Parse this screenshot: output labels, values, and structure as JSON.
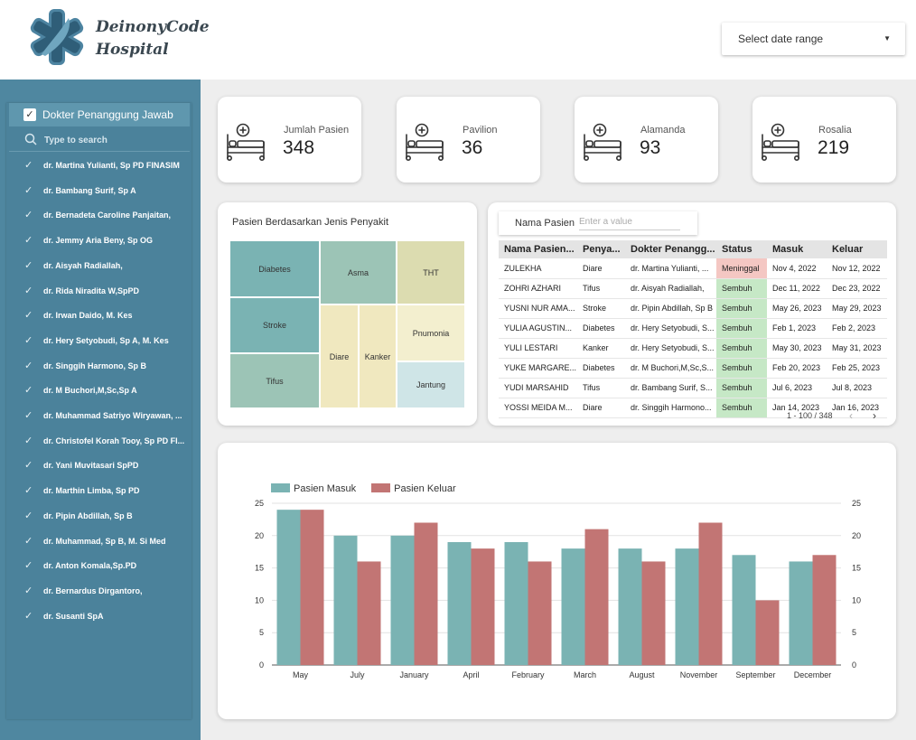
{
  "brand": {
    "line1": "DeinonyCode",
    "line2": "Hospital"
  },
  "date_range": {
    "label": "Select date range"
  },
  "colors": {
    "teal": "#7ab3b3",
    "red": "#c27574",
    "sidebar": "#4f87a0",
    "meninggal": "#f4c7c3",
    "sembuh": "#c6e8c6"
  },
  "sidebar": {
    "header": "Dokter Penanggung Jawab",
    "search_placeholder": "Type to search",
    "doctors": [
      "dr. Martina Yulianti, Sp PD FINASIM",
      "dr. Bambang Surif, Sp A",
      "dr. Bernadeta Caroline Panjaitan,",
      "dr. Jemmy Aria Beny, Sp OG",
      "dr. Aisyah Radiallah,",
      "dr. Rida Niradita W,SpPD",
      "dr. Irwan Daido, M. Kes",
      "dr. Hery Setyobudi, Sp A, M. Kes",
      "dr. Singgih Harmono, Sp B",
      "dr. M Buchori,M,Sc,Sp A",
      "dr. Muhammad Satriyo Wiryawan, ...",
      "dr. Christofel Korah Tooy, Sp PD FI...",
      "dr. Yani Muvitasari SpPD",
      "dr. Marthin Limba, Sp PD",
      "dr. Pipin Abdillah, Sp B",
      "dr. Muhammad, Sp B, M. Si Med",
      "dr. Anton Komala,Sp.PD",
      "dr. Bernardus Dirgantoro,",
      "dr. Susanti SpA"
    ]
  },
  "kpis": [
    {
      "label": "Jumlah Pasien",
      "value": "348",
      "icon": "hospital-bed-icon"
    },
    {
      "label": "Pavilion",
      "value": "36",
      "icon": "hospital-bed-icon"
    },
    {
      "label": "Alamanda",
      "value": "93",
      "icon": "hospital-bed-icon"
    },
    {
      "label": "Rosalia",
      "value": "219",
      "icon": "hospital-bed-icon"
    }
  ],
  "treemap": {
    "title": "Pasien Berdasarkan Jenis Penyakit",
    "cells": {
      "diabetes": "Diabetes",
      "stroke": "Stroke",
      "tifus": "Tifus",
      "asma": "Asma",
      "diare": "Diare",
      "kanker": "Kanker",
      "tht": "THT",
      "pnumonia": "Pnumonia",
      "jantung": "Jantung"
    }
  },
  "table": {
    "filter_label": "Nama Pasien",
    "filter_placeholder": "Enter a value",
    "columns": [
      "Nama Pasien...",
      "Penya...",
      "Dokter Penangg...",
      "Status",
      "Masuk",
      "Keluar"
    ],
    "rows": [
      [
        "ZULEKHA",
        "Diare",
        "dr. Martina Yulianti, ...",
        "Meninggal",
        "Nov 4, 2022",
        "Nov 12, 2022"
      ],
      [
        "ZOHRI AZHARI",
        "Tifus",
        "dr. Aisyah Radiallah,",
        "Sembuh",
        "Dec 11, 2022",
        "Dec 23, 2022"
      ],
      [
        "YUSNI NUR AMA...",
        "Stroke",
        "dr. Pipin Abdillah, Sp B",
        "Sembuh",
        "May 26, 2023",
        "May 29, 2023"
      ],
      [
        "YULIA AGUSTIN...",
        "Diabetes",
        "dr. Hery Setyobudi, S...",
        "Sembuh",
        "Feb 1, 2023",
        "Feb 2, 2023"
      ],
      [
        "YULI LESTARI",
        "Kanker",
        "dr. Hery Setyobudi, S...",
        "Sembuh",
        "May 30, 2023",
        "May 31, 2023"
      ],
      [
        "YUKE MARGARE...",
        "Diabetes",
        "dr. M Buchori,M,Sc,S...",
        "Sembuh",
        "Feb 20, 2023",
        "Feb 25, 2023"
      ],
      [
        "YUDI MARSAHID",
        "Tifus",
        "dr. Bambang Surif, S...",
        "Sembuh",
        "Jul 6, 2023",
        "Jul 8, 2023"
      ],
      [
        "YOSSI MEIDA M...",
        "Diare",
        "dr. Singgih Harmono...",
        "Sembuh",
        "Jan 14, 2023",
        "Jan 16, 2023"
      ]
    ],
    "pagination": "1 - 100 / 348"
  },
  "chart_data": {
    "type": "bar",
    "categories": [
      "May",
      "July",
      "January",
      "April",
      "February",
      "March",
      "August",
      "November",
      "September",
      "December"
    ],
    "series": [
      {
        "name": "Pasien Masuk",
        "values": [
          24,
          20,
          20,
          19,
          19,
          18,
          18,
          18,
          17,
          16
        ]
      },
      {
        "name": "Pasien Keluar",
        "values": [
          24,
          16,
          22,
          18,
          16,
          21,
          16,
          22,
          10,
          17
        ]
      }
    ],
    "ylim": [
      0,
      25
    ],
    "yticks": [
      0,
      5,
      10,
      15,
      20,
      25
    ],
    "legend": "top-left",
    "grid": true
  }
}
